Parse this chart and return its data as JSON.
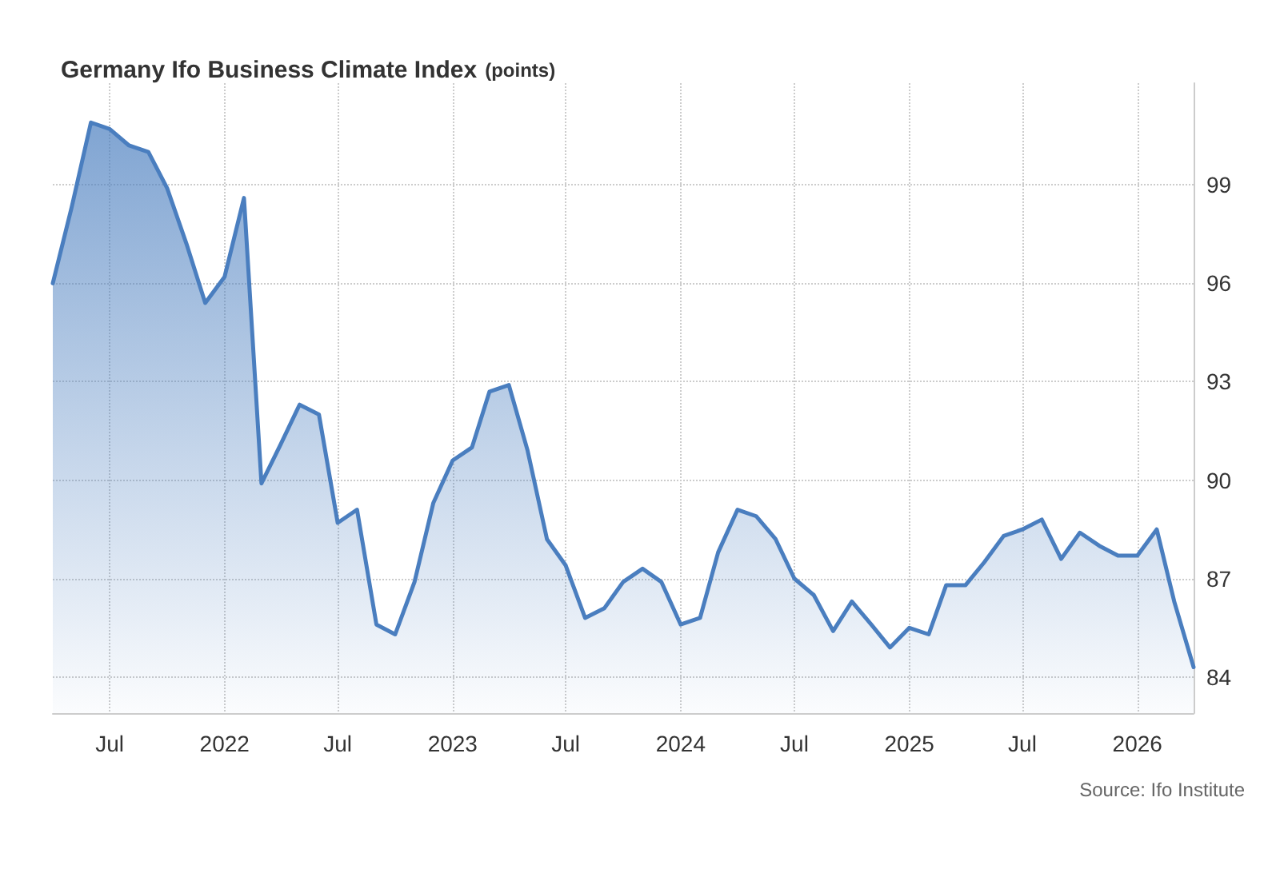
{
  "chart_data": {
    "type": "area",
    "title": "Germany Ifo Business Climate Index",
    "subtitle": "(points)",
    "x": [
      "2021-04",
      "2021-05",
      "2021-06",
      "2021-07",
      "2021-08",
      "2021-09",
      "2021-10",
      "2021-11",
      "2021-12",
      "2022-01",
      "2022-02",
      "2022-03",
      "2022-04",
      "2022-05",
      "2022-06",
      "2022-07",
      "2022-08",
      "2022-09",
      "2022-10",
      "2022-11",
      "2022-12",
      "2023-01",
      "2023-02",
      "2023-03",
      "2023-04",
      "2023-05",
      "2023-06",
      "2023-07",
      "2023-08",
      "2023-09",
      "2023-10",
      "2023-11",
      "2023-12",
      "2024-01",
      "2024-02",
      "2024-03",
      "2024-04",
      "2024-05",
      "2024-06",
      "2024-07",
      "2024-08",
      "2024-09",
      "2024-10",
      "2024-11",
      "2024-12",
      "2025-01",
      "2025-02",
      "2025-03",
      "2025-04",
      "2025-05",
      "2025-06",
      "2025-07",
      "2025-08",
      "2025-09",
      "2025-10",
      "2025-11",
      "2025-12",
      "2026-01",
      "2026-02",
      "2026-03",
      "2026-04"
    ],
    "series": [
      {
        "color": "#4a7ebf",
        "values": [
          96.0,
          98.3,
          100.9,
          100.7,
          100.2,
          100.0,
          98.9,
          97.2,
          95.4,
          96.2,
          98.6,
          89.9,
          91.1,
          92.3,
          92.0,
          88.7,
          89.1,
          85.6,
          85.3,
          86.9,
          89.3,
          90.6,
          91.0,
          92.7,
          92.9,
          90.9,
          88.2,
          87.4,
          85.8,
          86.1,
          86.9,
          87.3,
          86.9,
          85.6,
          85.8,
          87.8,
          89.1,
          88.9,
          88.2,
          87.0,
          86.5,
          85.4,
          86.3,
          85.6,
          84.9,
          85.5,
          85.3,
          86.8,
          86.8,
          87.5,
          88.3,
          88.5,
          88.8,
          87.6,
          88.4,
          88.0,
          87.7,
          87.7,
          88.5,
          86.3,
          84.3
        ]
      }
    ],
    "xlim": [
      "2021-04",
      "2026-04"
    ],
    "xticks": [
      {
        "value": "2021-07",
        "label": "Jul"
      },
      {
        "value": "2022-01",
        "label": "2022"
      },
      {
        "value": "2022-07",
        "label": "Jul"
      },
      {
        "value": "2023-01",
        "label": "2023"
      },
      {
        "value": "2023-07",
        "label": "Jul"
      },
      {
        "value": "2024-01",
        "label": "2024"
      },
      {
        "value": "2024-07",
        "label": "Jul"
      },
      {
        "value": "2025-01",
        "label": "2025"
      },
      {
        "value": "2025-07",
        "label": "Jul"
      },
      {
        "value": "2026-01",
        "label": "2026"
      }
    ],
    "ylim": [
      82.9,
      102.1
    ],
    "yticks": [
      84,
      87,
      90,
      93,
      96,
      99
    ],
    "grid": true,
    "marker": "none",
    "line_style": "solid",
    "annotations": [
      "Source: Ifo Institute"
    ]
  }
}
